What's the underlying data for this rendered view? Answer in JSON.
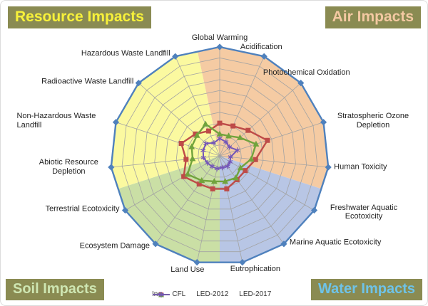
{
  "page": {
    "background": "#FFFFFF",
    "border_color": "#DCDCDC"
  },
  "badges": {
    "resource": {
      "label": "Resource Impacts",
      "bg": "#8A8B52",
      "fg": "#F7F13A"
    },
    "air": {
      "label": "Air Impacts",
      "bg": "#8A8B52",
      "fg": "#F4C9A2"
    },
    "soil": {
      "label": "Soil Impacts",
      "bg": "#8A8B52",
      "fg": "#CEE6B2"
    },
    "water": {
      "label": "Water Impacts",
      "bg": "#8A8B52",
      "fg": "#6EC3E8"
    }
  },
  "chart_data": {
    "type": "radar",
    "axes": [
      "Global Warming",
      "Acidification",
      "Photochemical Oxidation",
      "Stratospheric Ozone Depletion",
      "Human Toxicity",
      "Freshwater Aquatic Ecotoxicity",
      "Marine Aquatic Ecotoxicity",
      "Eutrophication",
      "Land Use",
      "Ecosystem Damage",
      "Terrestrial Ecotoxicity",
      "Abiotic Resource Depletion",
      "Non-Hazardous Waste Landfill",
      "Radioactive Waste Landfill",
      "Hazardous Waste Landfill"
    ],
    "axis_range": [
      0,
      100
    ],
    "rings": 10,
    "grid_color": "#A3A3A3",
    "legend_position": "bottom",
    "sectors": [
      {
        "name": "Air Impacts",
        "color": "#F5CBA3",
        "start_axis": 0,
        "end_axis": 4
      },
      {
        "name": "Water Impacts",
        "color": "#B8C6E5",
        "start_axis": 5,
        "end_axis": 7
      },
      {
        "name": "Soil Impacts",
        "color": "#CADFA5",
        "start_axis": 8,
        "end_axis": 10
      },
      {
        "name": "Resource Impacts",
        "color": "#FBF9A0",
        "start_axis": 11,
        "end_axis": 14
      }
    ],
    "series": [
      {
        "name": "Inc",
        "color": "#4F81BD",
        "marker": "diamond",
        "values": [
          100,
          100,
          100,
          100,
          100,
          100,
          100,
          100,
          100,
          100,
          100,
          100,
          100,
          100,
          100
        ]
      },
      {
        "name": "CFL",
        "color": "#BE4B48",
        "marker": "square",
        "values": [
          30,
          30,
          35,
          46,
          33,
          27,
          27,
          31,
          31,
          32,
          38,
          31,
          37,
          30,
          25
        ]
      },
      {
        "name": "LED-2012",
        "color": "#71A33C",
        "marker": "triangle",
        "values": [
          20,
          20,
          25,
          35,
          29,
          22,
          25,
          24,
          24,
          28,
          34,
          25,
          27,
          28,
          32
        ]
      },
      {
        "name": "LED-2017",
        "color": "#7456B8",
        "marker": "asterisk",
        "values": [
          16,
          14,
          12,
          17,
          10,
          11,
          12,
          11,
          12,
          12,
          13,
          15,
          16,
          17,
          13
        ]
      }
    ]
  }
}
